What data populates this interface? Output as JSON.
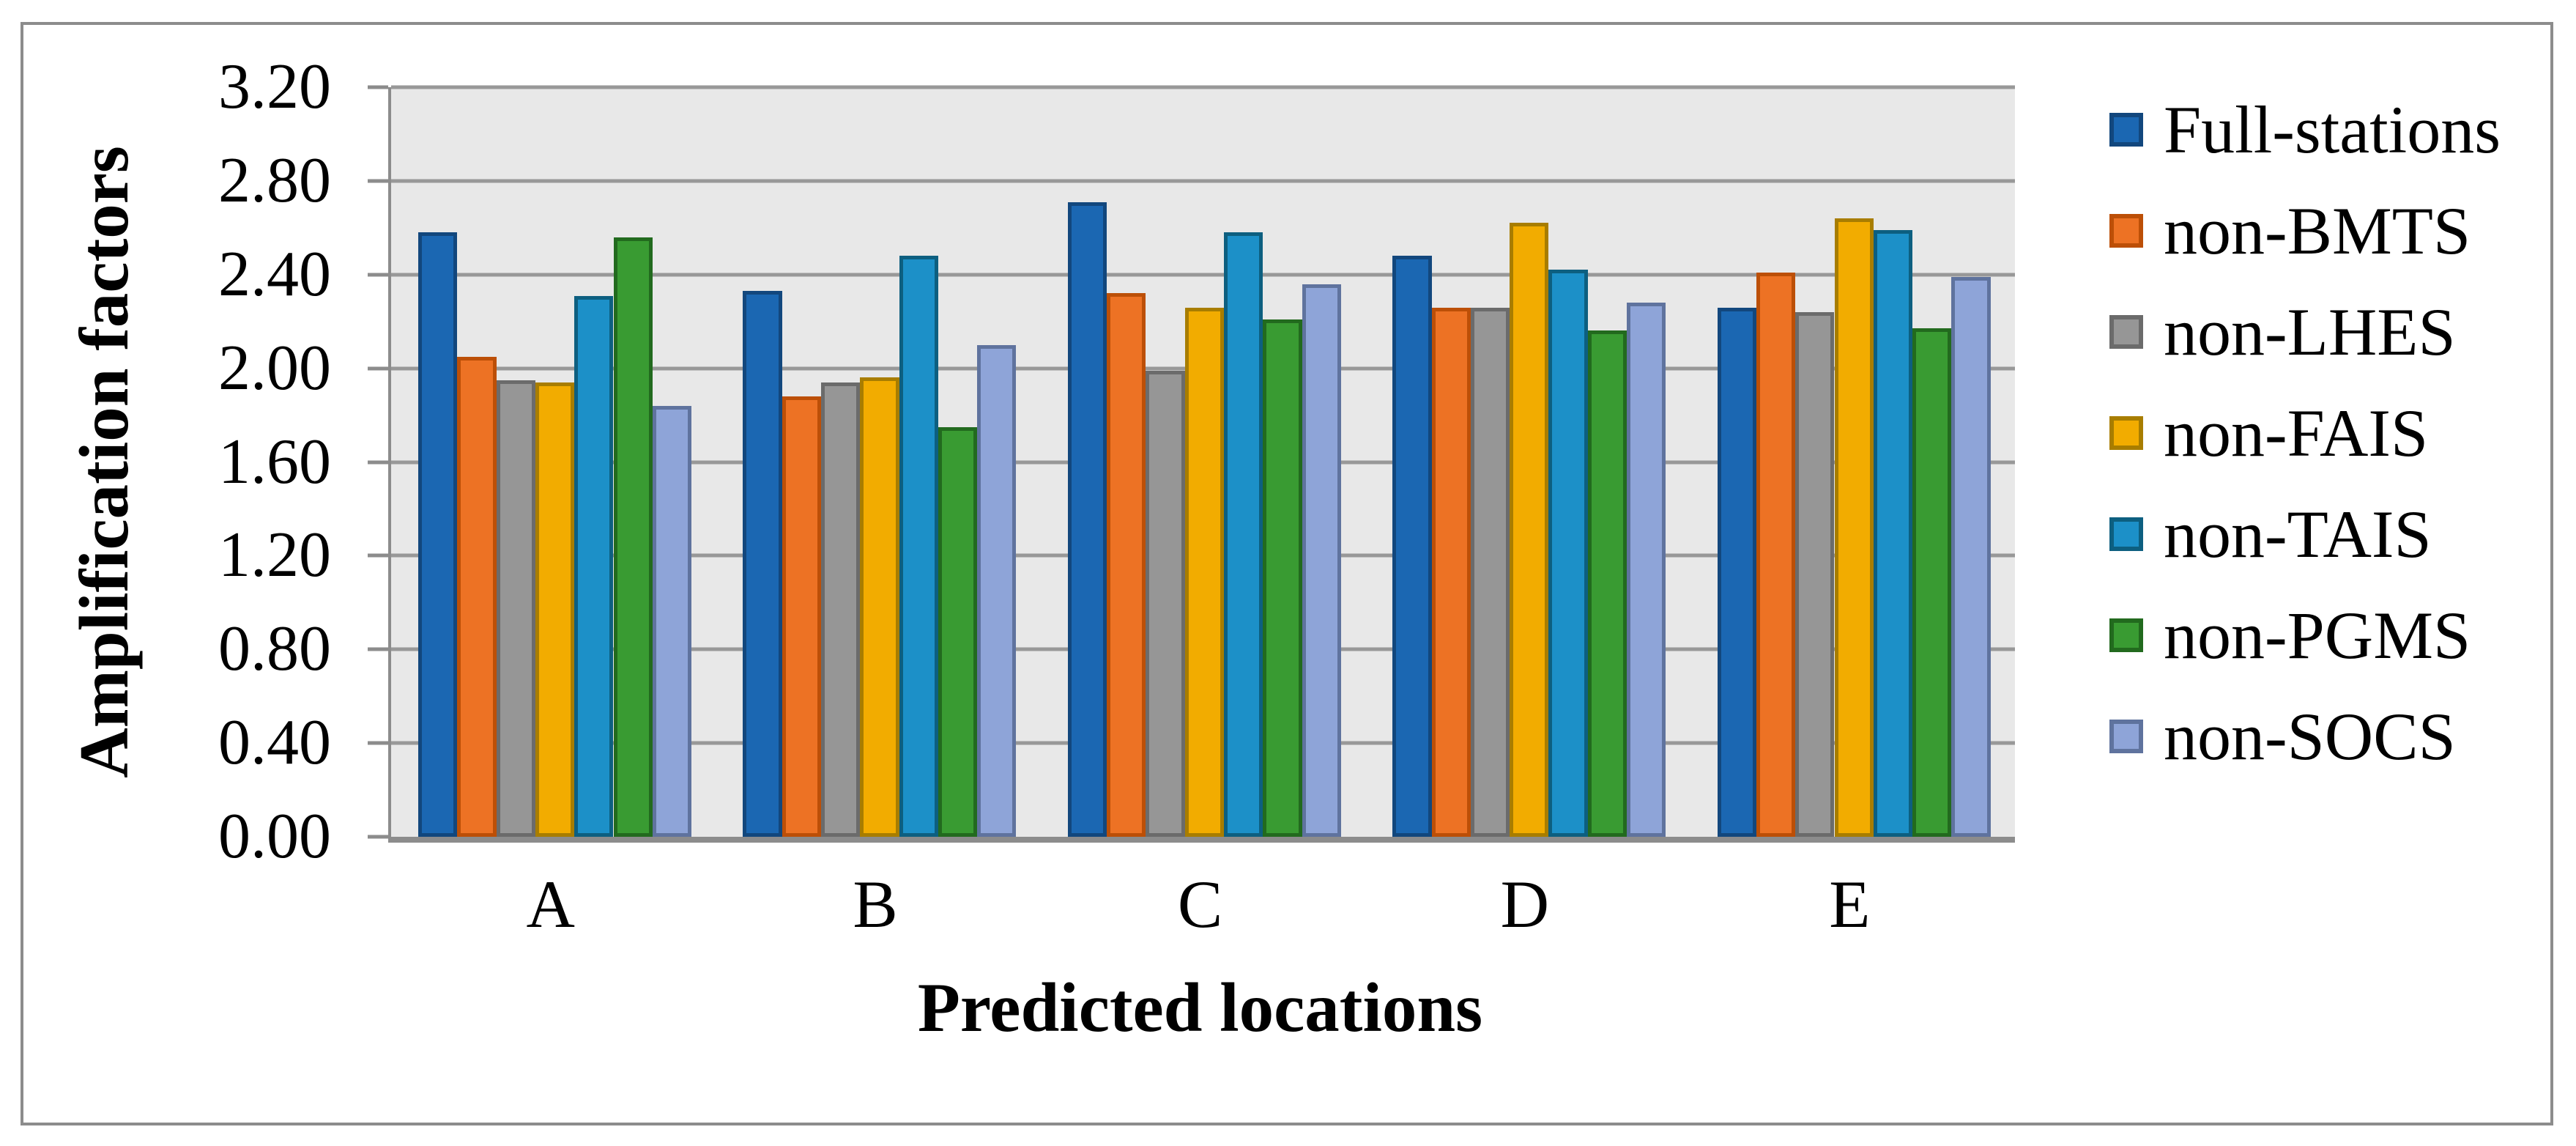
{
  "figure": {
    "background": "#FFFFFF",
    "border_color": "#8C8C8C"
  },
  "chart_data": {
    "type": "bar",
    "title": "",
    "xlabel": "Predicted locations",
    "ylabel": "Amplification factors",
    "categories": [
      "A",
      "B",
      "C",
      "D",
      "E"
    ],
    "ylim": [
      0.0,
      3.2
    ],
    "ytick_step": 0.4,
    "yticks_top_to_bottom": [
      "3.20",
      "2.80",
      "2.40",
      "2.00",
      "1.60",
      "1.20",
      "0.80",
      "0.40",
      "0.00"
    ],
    "grid": "horizontal",
    "legend_position": "right",
    "plot_background": "#E8E8E8",
    "gridline_color": "#989898",
    "axis_color": "#8C8C8C",
    "series": [
      {
        "name": "Full-stations",
        "color": "#1B67B2",
        "border": "#12477D",
        "values": [
          2.58,
          2.33,
          2.71,
          2.48,
          2.26
        ]
      },
      {
        "name": "non-BMTS",
        "color": "#ED7224",
        "border": "#BC4F07",
        "values": [
          2.05,
          1.88,
          2.32,
          2.26,
          2.41
        ]
      },
      {
        "name": "non-LHES",
        "color": "#969696",
        "border": "#6B6B6B",
        "values": [
          1.95,
          1.94,
          1.99,
          2.26,
          2.24
        ]
      },
      {
        "name": "non-FAIS",
        "color": "#F2AC00",
        "border": "#A87D00",
        "values": [
          1.94,
          1.96,
          2.26,
          2.62,
          2.64
        ]
      },
      {
        "name": "non-TAIS",
        "color": "#1C90C8",
        "border": "#0D5F80",
        "values": [
          2.31,
          2.48,
          2.58,
          2.42,
          2.59
        ]
      },
      {
        "name": "non-PGMS",
        "color": "#399B32",
        "border": "#226A1E",
        "values": [
          2.56,
          1.75,
          2.21,
          2.16,
          2.17
        ]
      },
      {
        "name": "non-SOCS",
        "color": "#8EA4D8",
        "border": "#5F739E",
        "values": [
          1.84,
          2.1,
          2.36,
          2.28,
          2.39
        ]
      }
    ]
  }
}
